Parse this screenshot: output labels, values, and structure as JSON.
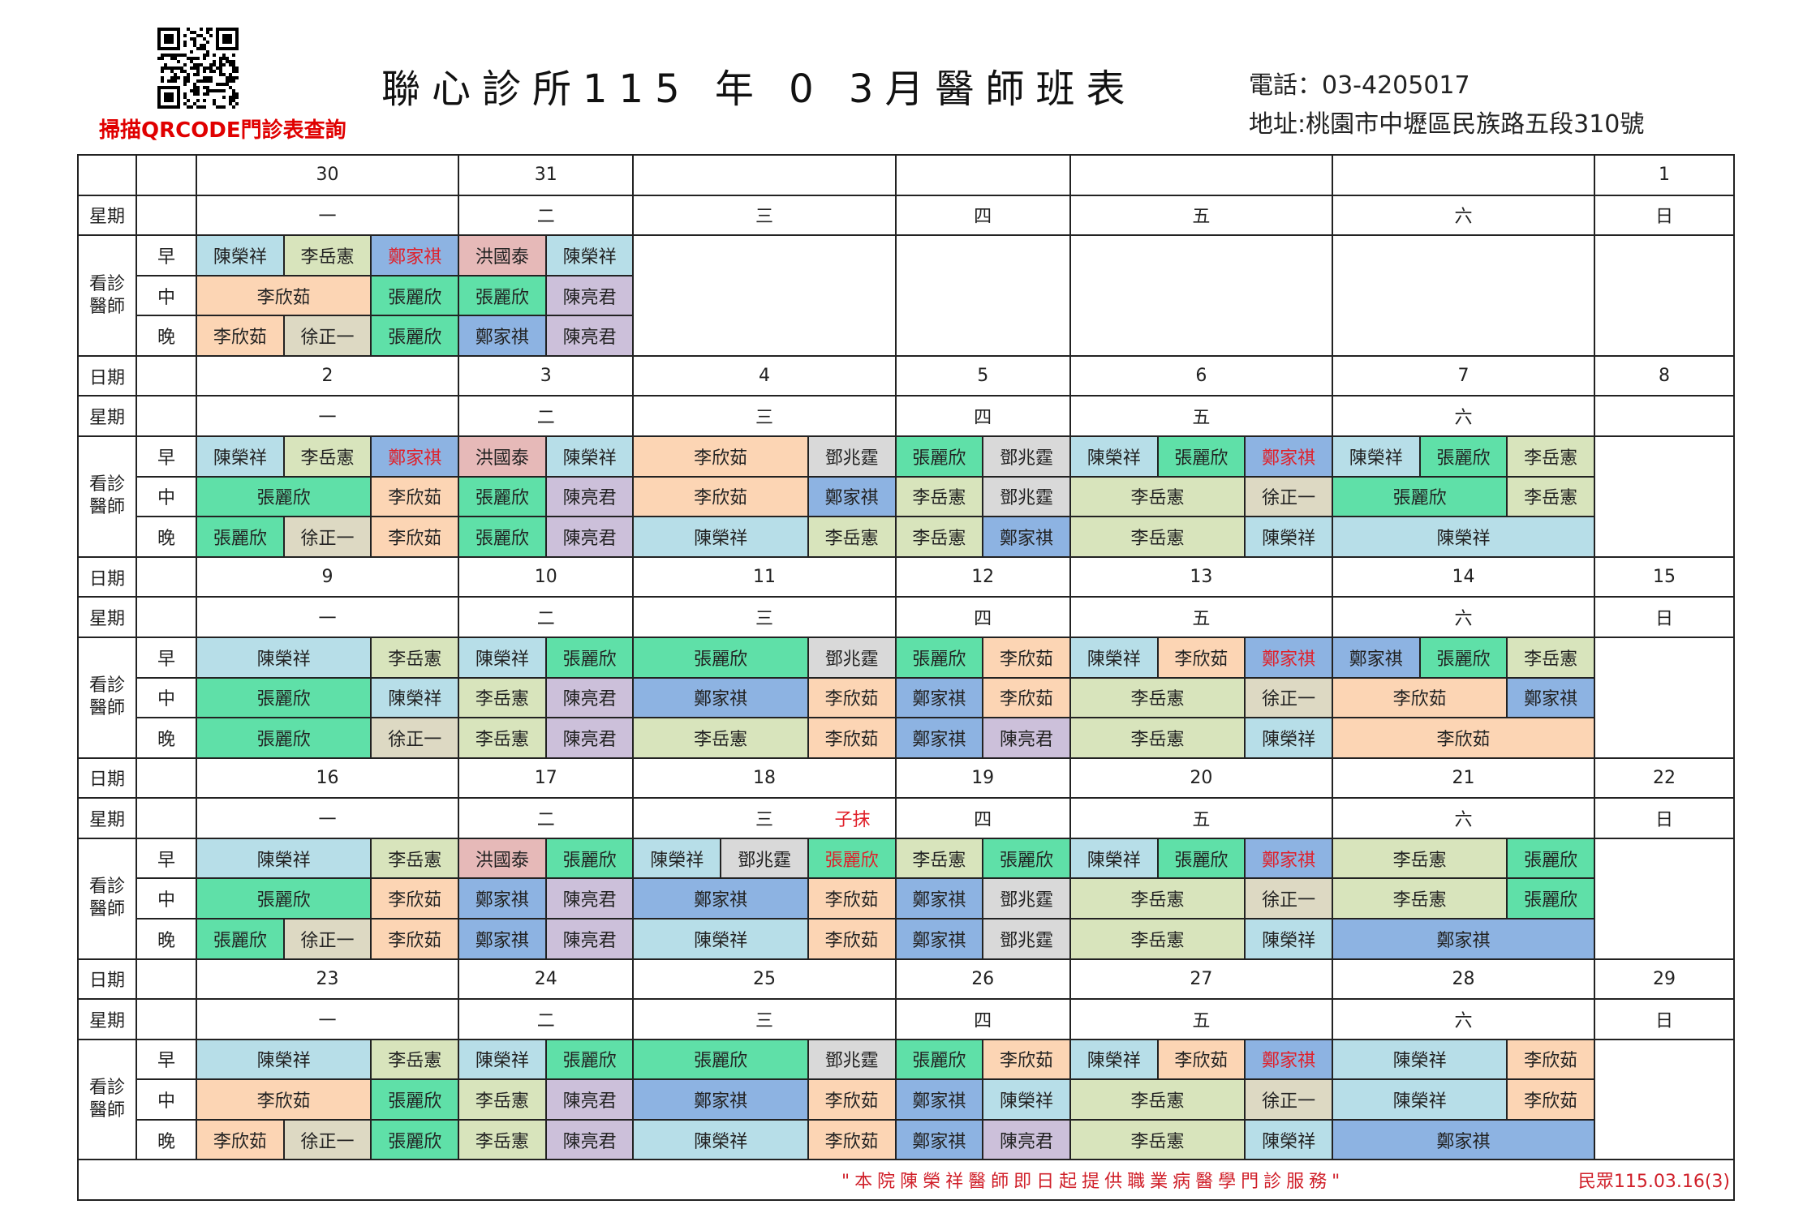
{
  "header": {
    "qr_caption": "掃描QRCODE門診表查詢",
    "title": "聯心診所115 年 0 3月醫師班表",
    "phone": "電話：03-4205017",
    "address": "地址:桃園市中壢區民族路五段310號"
  },
  "labels": {
    "date": "日期",
    "weekday": "星期",
    "doctors": [
      "看診",
      "醫師"
    ],
    "shifts": [
      "早",
      "中",
      "晚"
    ]
  },
  "colors": {
    "陳榮祥": "#b7dee8",
    "李岳憲": "#d8e4bc",
    "鄭家祺": "#8db3e2",
    "洪國泰": "#e6b9b8",
    "張麗欣": "#5fe0a8",
    "李欣茹": "#fcd5b4",
    "徐正一": "#ddd9c3",
    "陳亮君": "#ccc0da",
    "鄧兆霆": "#d9d9d9",
    "red_text": "#e0202a"
  },
  "weeks": [
    {
      "show_date_label": false,
      "dates": [
        "30",
        "31",
        "",
        "",
        "",
        "",
        "1"
      ],
      "weekdays": [
        "一",
        "二",
        "三",
        "四",
        "五",
        "六",
        "日"
      ],
      "shifts": [
        [
          [
            [
              "陳榮祥",
              1
            ],
            [
              "李岳憲",
              1
            ],
            [
              "鄭家祺",
              1,
              true
            ]
          ],
          [
            [
              "洪國泰",
              1
            ],
            [
              "陳榮祥",
              1
            ]
          ],
          null,
          null,
          null,
          null,
          null
        ],
        [
          [
            [
              "李欣茹",
              2
            ],
            [
              "張麗欣",
              1
            ]
          ],
          [
            [
              "張麗欣",
              1
            ],
            [
              "陳亮君",
              1
            ]
          ],
          null,
          null,
          null,
          null,
          null
        ],
        [
          [
            [
              "李欣茹",
              1
            ],
            [
              "徐正一",
              1
            ],
            [
              "張麗欣",
              1
            ]
          ],
          [
            [
              "鄭家祺",
              1
            ],
            [
              "陳亮君",
              1
            ]
          ],
          null,
          null,
          null,
          null,
          null
        ]
      ]
    },
    {
      "show_date_label": true,
      "dates": [
        "2",
        "3",
        "4",
        "5",
        "6",
        "7",
        "8"
      ],
      "weekdays": [
        "一",
        "二",
        "三",
        "四",
        "五",
        "六",
        ""
      ],
      "shifts": [
        [
          [
            [
              "陳榮祥",
              1
            ],
            [
              "李岳憲",
              1
            ],
            [
              "鄭家祺",
              1,
              true
            ]
          ],
          [
            [
              "洪國泰",
              1
            ],
            [
              "陳榮祥",
              1
            ]
          ],
          [
            [
              "李欣茹",
              2
            ],
            [
              "鄧兆霆",
              1
            ]
          ],
          [
            [
              "張麗欣",
              1
            ],
            [
              "鄧兆霆",
              1
            ]
          ],
          [
            [
              "陳榮祥",
              1
            ],
            [
              "張麗欣",
              1
            ],
            [
              "鄭家祺",
              1,
              true
            ]
          ],
          [
            [
              "陳榮祥",
              1
            ],
            [
              "張麗欣",
              1
            ],
            [
              "李岳憲",
              1
            ]
          ],
          null
        ],
        [
          [
            [
              "張麗欣",
              2
            ],
            [
              "李欣茹",
              1
            ]
          ],
          [
            [
              "張麗欣",
              1
            ],
            [
              "陳亮君",
              1
            ]
          ],
          [
            [
              "李欣茹",
              2
            ],
            [
              "鄭家祺",
              1
            ]
          ],
          [
            [
              "李岳憲",
              1
            ],
            [
              "鄧兆霆",
              1
            ]
          ],
          [
            [
              "李岳憲",
              2
            ],
            [
              "徐正一",
              1
            ]
          ],
          [
            [
              "張麗欣",
              2
            ],
            [
              "李岳憲",
              1
            ]
          ],
          null
        ],
        [
          [
            [
              "張麗欣",
              1
            ],
            [
              "徐正一",
              1
            ],
            [
              "李欣茹",
              1
            ]
          ],
          [
            [
              "張麗欣",
              1
            ],
            [
              "陳亮君",
              1
            ]
          ],
          [
            [
              "陳榮祥",
              2
            ],
            [
              "李岳憲",
              1
            ]
          ],
          [
            [
              "李岳憲",
              1
            ],
            [
              "鄭家祺",
              1
            ]
          ],
          [
            [
              "李岳憲",
              2
            ],
            [
              "陳榮祥",
              1
            ]
          ],
          [
            [
              "陳榮祥",
              3
            ]
          ],
          null
        ]
      ]
    },
    {
      "show_date_label": true,
      "dates": [
        "9",
        "10",
        "11",
        "12",
        "13",
        "14",
        "15"
      ],
      "weekdays": [
        "一",
        "二",
        "三",
        "四",
        "五",
        "六",
        "日"
      ],
      "shifts": [
        [
          [
            [
              "陳榮祥",
              2
            ],
            [
              "李岳憲",
              1
            ]
          ],
          [
            [
              "陳榮祥",
              1
            ],
            [
              "張麗欣",
              1
            ]
          ],
          [
            [
              "張麗欣",
              2
            ],
            [
              "鄧兆霆",
              1
            ]
          ],
          [
            [
              "張麗欣",
              1
            ],
            [
              "李欣茹",
              1
            ]
          ],
          [
            [
              "陳榮祥",
              1
            ],
            [
              "李欣茹",
              1
            ],
            [
              "鄭家祺",
              1,
              true
            ]
          ],
          [
            [
              "鄭家祺",
              1
            ],
            [
              "張麗欣",
              1
            ],
            [
              "李岳憲",
              1
            ]
          ],
          null
        ],
        [
          [
            [
              "張麗欣",
              2
            ],
            [
              "陳榮祥",
              1
            ]
          ],
          [
            [
              "李岳憲",
              1
            ],
            [
              "陳亮君",
              1
            ]
          ],
          [
            [
              "鄭家祺",
              2
            ],
            [
              "李欣茹",
              1
            ]
          ],
          [
            [
              "鄭家祺",
              1
            ],
            [
              "李欣茹",
              1
            ]
          ],
          [
            [
              "李岳憲",
              2
            ],
            [
              "徐正一",
              1
            ]
          ],
          [
            [
              "李欣茹",
              2
            ],
            [
              "鄭家祺",
              1
            ]
          ],
          null
        ],
        [
          [
            [
              "張麗欣",
              2
            ],
            [
              "徐正一",
              1
            ]
          ],
          [
            [
              "李岳憲",
              1
            ],
            [
              "陳亮君",
              1
            ]
          ],
          [
            [
              "李岳憲",
              2
            ],
            [
              "李欣茹",
              1
            ]
          ],
          [
            [
              "鄭家祺",
              1
            ],
            [
              "陳亮君",
              1
            ]
          ],
          [
            [
              "李岳憲",
              2
            ],
            [
              "陳榮祥",
              1
            ]
          ],
          [
            [
              "李欣茹",
              3
            ]
          ],
          null
        ]
      ]
    },
    {
      "show_date_label": true,
      "dates": [
        "16",
        "17",
        "18",
        "19",
        "20",
        "21",
        "22"
      ],
      "weekdays": [
        "一",
        "二",
        "三",
        "四",
        "五",
        "六",
        "日"
      ],
      "weekday_notes": {
        "2": "子抹"
      },
      "shifts": [
        [
          [
            [
              "陳榮祥",
              2
            ],
            [
              "李岳憲",
              1
            ]
          ],
          [
            [
              "洪國泰",
              1
            ],
            [
              "張麗欣",
              1
            ]
          ],
          [
            [
              "陳榮祥",
              1
            ],
            [
              "鄧兆霆",
              1
            ],
            [
              "張麗欣",
              1,
              true
            ]
          ],
          [
            [
              "李岳憲",
              1
            ],
            [
              "張麗欣",
              1
            ]
          ],
          [
            [
              "陳榮祥",
              1
            ],
            [
              "張麗欣",
              1
            ],
            [
              "鄭家祺",
              1,
              true
            ]
          ],
          [
            [
              "李岳憲",
              2
            ],
            [
              "張麗欣",
              1
            ]
          ],
          null
        ],
        [
          [
            [
              "張麗欣",
              2
            ],
            [
              "李欣茹",
              1
            ]
          ],
          [
            [
              "鄭家祺",
              1
            ],
            [
              "陳亮君",
              1
            ]
          ],
          [
            [
              "鄭家祺",
              2
            ],
            [
              "李欣茹",
              1
            ]
          ],
          [
            [
              "鄭家祺",
              1
            ],
            [
              "鄧兆霆",
              1
            ]
          ],
          [
            [
              "李岳憲",
              2
            ],
            [
              "徐正一",
              1
            ]
          ],
          [
            [
              "李岳憲",
              2
            ],
            [
              "張麗欣",
              1
            ]
          ],
          null
        ],
        [
          [
            [
              "張麗欣",
              1
            ],
            [
              "徐正一",
              1
            ],
            [
              "李欣茹",
              1
            ]
          ],
          [
            [
              "鄭家祺",
              1
            ],
            [
              "陳亮君",
              1
            ]
          ],
          [
            [
              "陳榮祥",
              2
            ],
            [
              "李欣茹",
              1
            ]
          ],
          [
            [
              "鄭家祺",
              1
            ],
            [
              "鄧兆霆",
              1
            ]
          ],
          [
            [
              "李岳憲",
              2
            ],
            [
              "陳榮祥",
              1
            ]
          ],
          [
            [
              "鄭家祺",
              3
            ]
          ],
          null
        ]
      ]
    },
    {
      "show_date_label": true,
      "dates": [
        "23",
        "24",
        "25",
        "26",
        "27",
        "28",
        "29"
      ],
      "weekdays": [
        "一",
        "二",
        "三",
        "四",
        "五",
        "六",
        "日"
      ],
      "shifts": [
        [
          [
            [
              "陳榮祥",
              2
            ],
            [
              "李岳憲",
              1
            ]
          ],
          [
            [
              "陳榮祥",
              1
            ],
            [
              "張麗欣",
              1
            ]
          ],
          [
            [
              "張麗欣",
              2
            ],
            [
              "鄧兆霆",
              1
            ]
          ],
          [
            [
              "張麗欣",
              1
            ],
            [
              "李欣茹",
              1
            ]
          ],
          [
            [
              "陳榮祥",
              1
            ],
            [
              "李欣茹",
              1
            ],
            [
              "鄭家祺",
              1,
              true
            ]
          ],
          [
            [
              "陳榮祥",
              2
            ],
            [
              "李欣茹",
              1
            ]
          ],
          null
        ],
        [
          [
            [
              "李欣茹",
              2
            ],
            [
              "張麗欣",
              1
            ]
          ],
          [
            [
              "李岳憲",
              1
            ],
            [
              "陳亮君",
              1
            ]
          ],
          [
            [
              "鄭家祺",
              2
            ],
            [
              "李欣茹",
              1
            ]
          ],
          [
            [
              "鄭家祺",
              1
            ],
            [
              "陳榮祥",
              1
            ]
          ],
          [
            [
              "李岳憲",
              2
            ],
            [
              "徐正一",
              1
            ]
          ],
          [
            [
              "陳榮祥",
              2
            ],
            [
              "李欣茹",
              1
            ]
          ],
          null
        ],
        [
          [
            [
              "李欣茹",
              1
            ],
            [
              "徐正一",
              1
            ],
            [
              "張麗欣",
              1
            ]
          ],
          [
            [
              "李岳憲",
              1
            ],
            [
              "陳亮君",
              1
            ]
          ],
          [
            [
              "陳榮祥",
              2
            ],
            [
              "李欣茹",
              1
            ]
          ],
          [
            [
              "鄭家祺",
              1
            ],
            [
              "陳亮君",
              1
            ]
          ],
          [
            [
              "李岳憲",
              2
            ],
            [
              "陳榮祥",
              1
            ]
          ],
          [
            [
              "鄭家祺",
              3
            ]
          ],
          null
        ]
      ]
    }
  ],
  "footer": {
    "notice": "\"本院陳榮祥醫師即日起提供職業病醫學門診服務\"",
    "version": "民眾115.03.16(3)"
  }
}
